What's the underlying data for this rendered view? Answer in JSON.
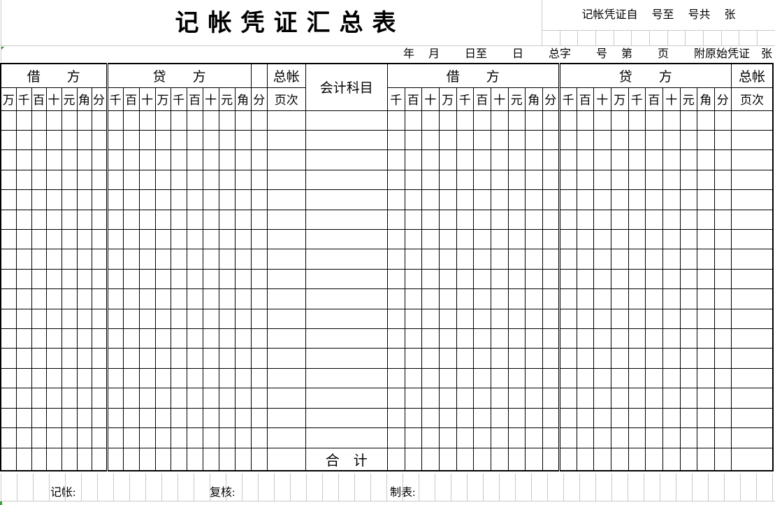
{
  "header": {
    "title": "记帐凭证汇总表",
    "voucher_range_label": "记帐凭证自　 号至　 号共　 张",
    "date_line": "年　 月　　 日至　　 日　　 总字　　 号　 第　　 页　　 附原始凭证　张"
  },
  "table": {
    "debit_label": "借　　方",
    "credit_label": "贷　　方",
    "ledger_label_top": "总帐",
    "ledger_label_bottom": "页次",
    "account_title_label": "会计科目",
    "total_label": "合　计",
    "left_debit_digits": [
      "万",
      "千",
      "百",
      "十",
      "元",
      "角",
      "分"
    ],
    "left_credit_digits": [
      "千",
      "百",
      "十",
      "万",
      "千",
      "百",
      "十",
      "元",
      "角",
      "分"
    ],
    "right_debit_digits": [
      "千",
      "百",
      "十",
      "万",
      "千",
      "百",
      "十",
      "元",
      "角",
      "分"
    ],
    "right_credit_digits": [
      "千",
      "百",
      "十",
      "万",
      "千",
      "百",
      "十",
      "元",
      "角",
      "分"
    ],
    "data_row_count": 17
  },
  "footer": {
    "bookkeeper_label": "记帐:",
    "reviewer_label": "复核:",
    "preparer_label": "制表:"
  },
  "colors": {
    "grid_line": "#c9c9c9",
    "table_border": "#000000",
    "marker_green": "#2e8b2e"
  }
}
